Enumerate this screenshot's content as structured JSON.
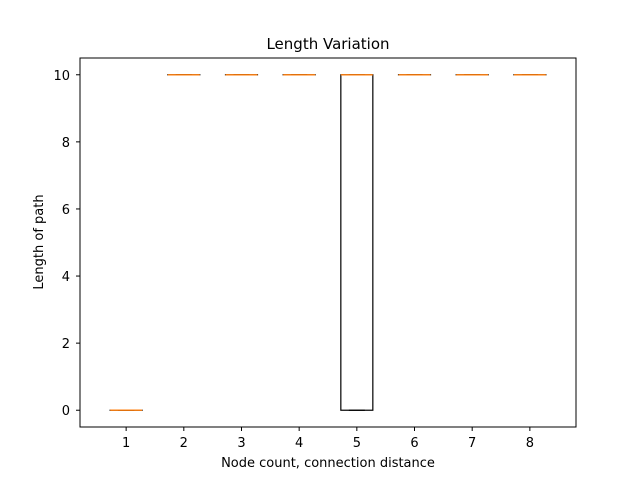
{
  "chart_data": {
    "type": "box",
    "title": "Length Variation",
    "xlabel": "Node count, connection distance",
    "ylabel": "Length of path",
    "categories": [
      "1",
      "2",
      "3",
      "4",
      "5",
      "6",
      "7",
      "8"
    ],
    "ylim": [
      -0.5,
      10.5
    ],
    "yticks": [
      0,
      2,
      4,
      6,
      8,
      10
    ],
    "boxes": [
      {
        "category": "1",
        "whislo": 0,
        "q1": 0,
        "median": 0,
        "q3": 0,
        "whishi": 0
      },
      {
        "category": "2",
        "whislo": 10,
        "q1": 10,
        "median": 10,
        "q3": 10,
        "whishi": 10
      },
      {
        "category": "3",
        "whislo": 10,
        "q1": 10,
        "median": 10,
        "q3": 10,
        "whishi": 10
      },
      {
        "category": "4",
        "whislo": 10,
        "q1": 10,
        "median": 10,
        "q3": 10,
        "whishi": 10
      },
      {
        "category": "5",
        "whislo": 0,
        "q1": 0,
        "median": 10,
        "q3": 10,
        "whishi": 10
      },
      {
        "category": "6",
        "whislo": 10,
        "q1": 10,
        "median": 10,
        "q3": 10,
        "whishi": 10
      },
      {
        "category": "7",
        "whislo": 10,
        "q1": 10,
        "median": 10,
        "q3": 10,
        "whishi": 10
      },
      {
        "category": "8",
        "whislo": 10,
        "q1": 10,
        "median": 10,
        "q3": 10,
        "whishi": 10
      }
    ],
    "grid": false,
    "colors": {
      "box": "#000000",
      "median": "#ff7f0e"
    }
  }
}
